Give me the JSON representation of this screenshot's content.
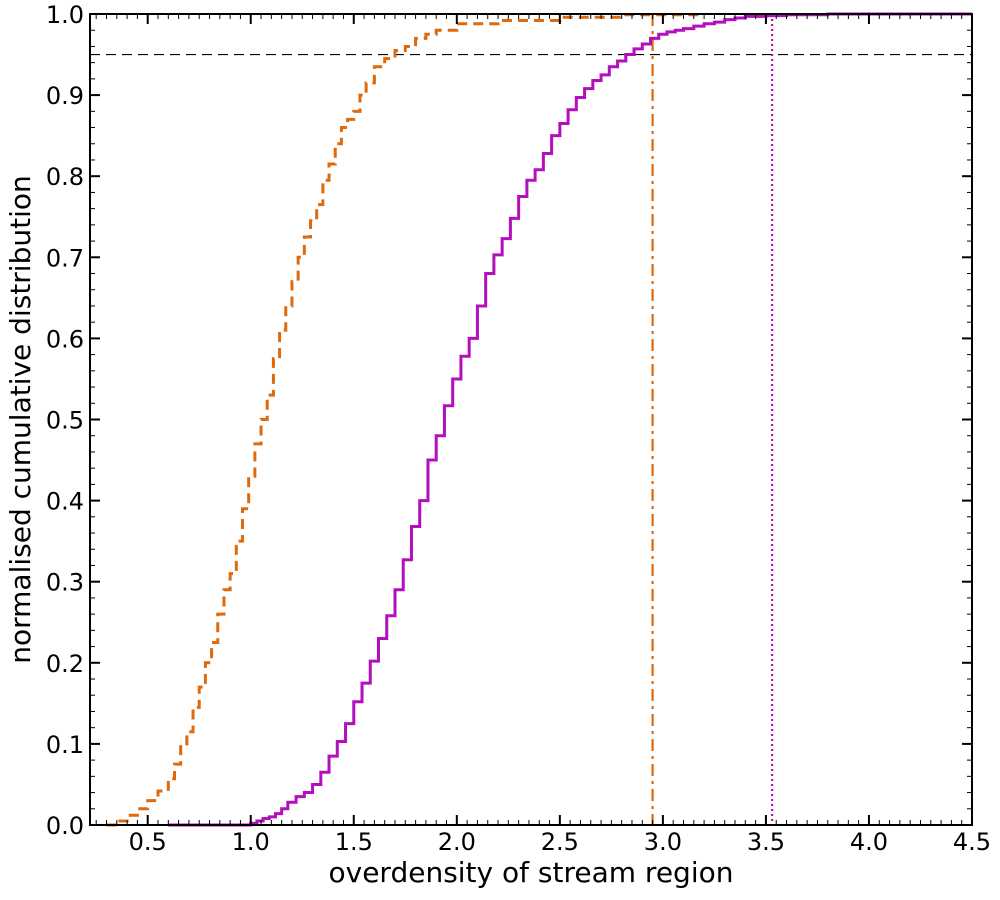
{
  "chart_data": {
    "type": "line",
    "title": "",
    "xlabel": "overdensity of stream region",
    "ylabel": "normalised cumulative distribution",
    "xlim": [
      0.22,
      4.5
    ],
    "ylim": [
      0.0,
      1.0
    ],
    "x_ticks": [
      0.5,
      1.0,
      1.5,
      2.0,
      2.5,
      3.0,
      3.5,
      4.0,
      4.5
    ],
    "x_tick_labels": [
      "0.5",
      "1.0",
      "1.5",
      "2.0",
      "2.5",
      "3.0",
      "3.5",
      "4.0",
      "4.5"
    ],
    "y_ticks": [
      0.0,
      0.1,
      0.2,
      0.3,
      0.4,
      0.5,
      0.6,
      0.7,
      0.8,
      0.9,
      1.0
    ],
    "y_tick_labels": [
      "0.0",
      "0.1",
      "0.2",
      "0.3",
      "0.4",
      "0.5",
      "0.6",
      "0.7",
      "0.8",
      "0.9",
      "1.0"
    ],
    "grid": false,
    "series": [
      {
        "color": "#dd6a0c",
        "style": "dashed",
        "step": true,
        "x": [
          0.3,
          0.35,
          0.4,
          0.45,
          0.5,
          0.55,
          0.6,
          0.63,
          0.66,
          0.69,
          0.72,
          0.75,
          0.78,
          0.81,
          0.84,
          0.87,
          0.9,
          0.93,
          0.96,
          0.99,
          1.02,
          1.05,
          1.08,
          1.11,
          1.14,
          1.17,
          1.2,
          1.23,
          1.26,
          1.29,
          1.32,
          1.35,
          1.38,
          1.41,
          1.44,
          1.47,
          1.5,
          1.53,
          1.56,
          1.6,
          1.65,
          1.7,
          1.75,
          1.8,
          1.85,
          1.9,
          2.0,
          2.2,
          2.5,
          2.8,
          3.2
        ],
        "y": [
          0.0,
          0.005,
          0.012,
          0.02,
          0.03,
          0.042,
          0.057,
          0.075,
          0.1,
          0.115,
          0.145,
          0.17,
          0.2,
          0.225,
          0.26,
          0.29,
          0.31,
          0.35,
          0.39,
          0.43,
          0.47,
          0.5,
          0.53,
          0.575,
          0.61,
          0.64,
          0.67,
          0.7,
          0.725,
          0.745,
          0.765,
          0.795,
          0.815,
          0.84,
          0.86,
          0.87,
          0.88,
          0.9,
          0.915,
          0.935,
          0.945,
          0.955,
          0.96,
          0.97,
          0.975,
          0.98,
          0.988,
          0.992,
          0.996,
          0.999,
          1.0
        ]
      },
      {
        "color": "#b40fbe",
        "style": "solid",
        "step": true,
        "x": [
          0.6,
          1.0,
          1.03,
          1.06,
          1.09,
          1.12,
          1.15,
          1.18,
          1.22,
          1.26,
          1.3,
          1.34,
          1.38,
          1.42,
          1.46,
          1.5,
          1.54,
          1.58,
          1.62,
          1.66,
          1.7,
          1.74,
          1.78,
          1.82,
          1.86,
          1.9,
          1.94,
          1.98,
          2.02,
          2.06,
          2.1,
          2.14,
          2.18,
          2.22,
          2.26,
          2.3,
          2.34,
          2.38,
          2.42,
          2.46,
          2.5,
          2.54,
          2.58,
          2.62,
          2.66,
          2.7,
          2.74,
          2.78,
          2.82,
          2.86,
          2.9,
          2.94,
          2.98,
          3.02,
          3.06,
          3.1,
          3.15,
          3.2,
          3.25,
          3.3,
          3.35,
          3.4,
          3.5,
          3.6,
          3.7,
          3.8,
          3.9,
          4.0,
          4.5
        ],
        "y": [
          0.0,
          0.002,
          0.005,
          0.008,
          0.01,
          0.014,
          0.02,
          0.028,
          0.035,
          0.04,
          0.05,
          0.065,
          0.085,
          0.103,
          0.125,
          0.152,
          0.175,
          0.202,
          0.23,
          0.258,
          0.29,
          0.327,
          0.368,
          0.4,
          0.45,
          0.48,
          0.517,
          0.55,
          0.578,
          0.6,
          0.64,
          0.68,
          0.703,
          0.723,
          0.748,
          0.775,
          0.795,
          0.808,
          0.828,
          0.85,
          0.865,
          0.882,
          0.897,
          0.908,
          0.918,
          0.925,
          0.935,
          0.942,
          0.95,
          0.957,
          0.963,
          0.97,
          0.975,
          0.978,
          0.98,
          0.982,
          0.985,
          0.988,
          0.99,
          0.993,
          0.995,
          0.997,
          0.998,
          0.999,
          0.999,
          1.0,
          1.0,
          1.0,
          1.0
        ]
      }
    ],
    "reference_lines": [
      {
        "orientation": "horizontal",
        "value": 0.95,
        "color": "#000000",
        "style": "dashed"
      },
      {
        "orientation": "vertical",
        "value": 2.95,
        "color": "#dd6a0c",
        "style": "dashdot"
      },
      {
        "orientation": "vertical",
        "value": 3.53,
        "color": "#b40fbe",
        "style": "dotted"
      }
    ]
  }
}
